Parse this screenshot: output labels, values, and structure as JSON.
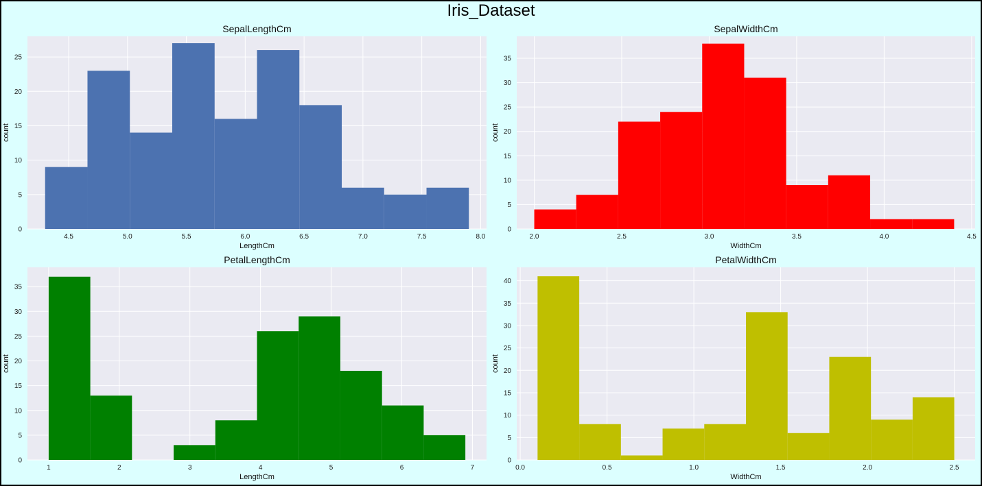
{
  "title": "Iris_Dataset",
  "chart_data": [
    {
      "type": "bar",
      "title": "SepalLengthCm",
      "xlabel": "LengthCm",
      "ylabel": "count",
      "color": "#4c72b0",
      "bin_edges": [
        4.3,
        4.66,
        5.02,
        5.38,
        5.74,
        6.1,
        6.46,
        6.82,
        7.18,
        7.54,
        7.9
      ],
      "values": [
        9,
        23,
        14,
        27,
        16,
        26,
        18,
        6,
        5,
        6
      ],
      "xlim": [
        4.15,
        8.05
      ],
      "ylim": [
        0,
        28
      ],
      "xticks": [
        "4.5",
        "5.0",
        "5.5",
        "6.0",
        "6.5",
        "7.0",
        "7.5",
        "8.0"
      ],
      "yticks": [
        "0",
        "5",
        "10",
        "15",
        "20",
        "25"
      ],
      "grid": true
    },
    {
      "type": "bar",
      "title": "SepalWidthCm",
      "xlabel": "WidthCm",
      "ylabel": "count",
      "color": "#ff0000",
      "bin_edges": [
        2.0,
        2.24,
        2.48,
        2.72,
        2.96,
        3.2,
        3.44,
        3.68,
        3.92,
        4.16,
        4.4
      ],
      "values": [
        4,
        7,
        22,
        24,
        38,
        31,
        9,
        11,
        2,
        2
      ],
      "xlim": [
        1.9,
        4.52
      ],
      "ylim": [
        0,
        39.5
      ],
      "xticks": [
        "2.0",
        "2.5",
        "3.0",
        "3.5",
        "4.0",
        "4.5"
      ],
      "yticks": [
        "0",
        "5",
        "10",
        "15",
        "20",
        "25",
        "30",
        "35"
      ],
      "grid": true
    },
    {
      "type": "bar",
      "title": "PetalLengthCm",
      "xlabel": "LengthCm",
      "ylabel": "count",
      "color": "#008000",
      "bin_edges": [
        1.0,
        1.59,
        2.18,
        2.77,
        3.36,
        3.95,
        4.54,
        5.13,
        5.72,
        6.31,
        6.9
      ],
      "values": [
        37,
        13,
        0,
        3,
        8,
        26,
        29,
        18,
        11,
        5
      ],
      "xlim": [
        0.7,
        7.2
      ],
      "ylim": [
        0,
        38.9
      ],
      "xticks": [
        "1",
        "2",
        "3",
        "4",
        "5",
        "6",
        "7"
      ],
      "yticks": [
        "0",
        "5",
        "10",
        "15",
        "20",
        "25",
        "30",
        "35"
      ],
      "grid": true
    },
    {
      "type": "bar",
      "title": "PetalWidthCm",
      "xlabel": "WidthCm",
      "ylabel": "count",
      "color": "#bfbf00",
      "bin_edges": [
        0.1,
        0.34,
        0.58,
        0.82,
        1.06,
        1.3,
        1.54,
        1.78,
        2.02,
        2.26,
        2.5
      ],
      "values": [
        41,
        8,
        1,
        7,
        8,
        33,
        6,
        23,
        9,
        14
      ],
      "xlim": [
        -0.02,
        2.62
      ],
      "ylim": [
        0,
        43
      ],
      "xticks": [
        "0.0",
        "0.5",
        "1.0",
        "1.5",
        "2.0",
        "2.5"
      ],
      "yticks": [
        "0",
        "5",
        "10",
        "15",
        "20",
        "25",
        "30",
        "35",
        "40"
      ],
      "grid": true
    }
  ]
}
